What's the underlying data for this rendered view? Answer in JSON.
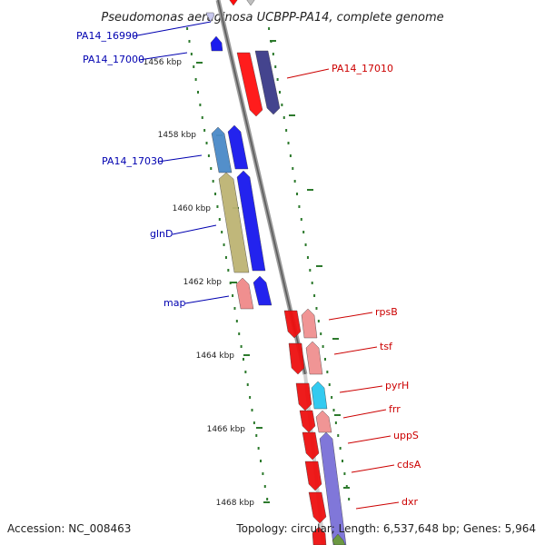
{
  "title": "Pseudomonas aeruginosa UCBPP-PA14, complete genome",
  "footer": {
    "accession": "Accession: NC_008463",
    "summary": "Topology: circular; Length: 6,537,648 bp; Genes: 5,964"
  },
  "colors": {
    "backbone": "#8a8a8a",
    "left_label": "#0000b0",
    "right_label": "#cc0000",
    "tick_dots": "#2d7a2d"
  },
  "ticks": [
    "1456 kbp",
    "1458 kbp",
    "1460 kbp",
    "1462 kbp",
    "1464 kbp",
    "1466 kbp",
    "1468 kbp"
  ],
  "left_genes": [
    "PA14_16990",
    "PA14_17000",
    "PA14_17030",
    "glnD",
    "map"
  ],
  "right_genes": [
    "PA14_17010",
    "rpsB",
    "tsf",
    "pyrH",
    "frr",
    "uppS",
    "cdsA",
    "dxr"
  ]
}
